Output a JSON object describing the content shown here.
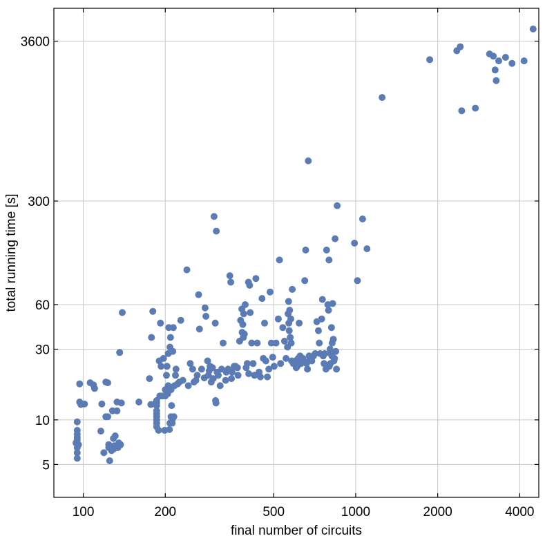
{
  "chart_data": {
    "type": "scatter",
    "xlabel": "final number of circuits",
    "ylabel": "total running time [s]",
    "xscale": "log",
    "yscale": "log",
    "xlim": [
      78,
      4700
    ],
    "ylim": [
      3,
      6000
    ],
    "grid": true,
    "xticks": [
      100,
      200,
      500,
      1000,
      2000,
      4000
    ],
    "xtick_labels": [
      "100",
      "200",
      "500",
      "1000",
      "2000",
      "4000"
    ],
    "yticks": [
      5,
      10,
      30,
      60,
      300,
      3600
    ],
    "ytick_labels": [
      "5",
      "10",
      "30",
      "60",
      "300",
      "3600"
    ],
    "marker_color": "#5b7bb5",
    "points": [
      [
        95,
        5.5
      ],
      [
        95,
        6
      ],
      [
        95,
        6.5
      ],
      [
        95,
        7
      ],
      [
        95,
        7.3
      ],
      [
        95,
        7.6
      ],
      [
        95,
        8
      ],
      [
        95,
        8.5
      ],
      [
        95,
        9.7
      ],
      [
        94,
        7
      ],
      [
        96,
        6.8
      ],
      [
        97,
        17.5
      ],
      [
        97,
        13.2
      ],
      [
        98,
        12.7
      ],
      [
        101,
        12.8
      ],
      [
        106,
        17.8
      ],
      [
        109,
        17.2
      ],
      [
        110,
        16.3
      ],
      [
        116,
        8.4
      ],
      [
        117,
        12.8
      ],
      [
        119,
        6
      ],
      [
        121,
        10.5
      ],
      [
        121,
        18
      ],
      [
        123,
        10.5
      ],
      [
        123,
        17.8
      ],
      [
        124,
        6.5
      ],
      [
        124,
        6.8
      ],
      [
        125,
        5.3
      ],
      [
        126,
        6.5
      ],
      [
        127,
        6.2
      ],
      [
        128,
        11.5
      ],
      [
        129,
        7.5
      ],
      [
        130,
        6.4
      ],
      [
        130,
        6.7
      ],
      [
        131,
        7.8
      ],
      [
        132,
        6.6
      ],
      [
        133,
        11.5
      ],
      [
        133,
        13.2
      ],
      [
        134,
        6.5
      ],
      [
        135,
        7
      ],
      [
        136,
        28.5
      ],
      [
        137,
        6.8
      ],
      [
        138,
        13
      ],
      [
        139,
        53
      ],
      [
        160,
        13.2
      ],
      [
        175,
        19
      ],
      [
        177,
        12.7
      ],
      [
        178,
        36
      ],
      [
        180,
        54
      ],
      [
        183,
        12.8
      ],
      [
        186,
        9
      ],
      [
        186,
        9.5
      ],
      [
        186,
        10
      ],
      [
        186,
        10.5
      ],
      [
        186,
        11
      ],
      [
        186,
        11.5
      ],
      [
        186,
        12.5
      ],
      [
        186,
        13
      ],
      [
        186,
        13.5
      ],
      [
        189,
        8.5
      ],
      [
        190,
        25
      ],
      [
        191,
        14.5
      ],
      [
        192,
        45
      ],
      [
        193,
        23
      ],
      [
        195,
        14.5
      ],
      [
        197,
        26
      ],
      [
        199,
        8.5
      ],
      [
        200,
        14.5
      ],
      [
        200,
        16
      ],
      [
        202,
        20
      ],
      [
        203,
        23
      ],
      [
        204,
        15
      ],
      [
        205,
        17
      ],
      [
        205,
        28
      ],
      [
        206,
        42
      ],
      [
        207,
        8.6
      ],
      [
        208,
        9.5
      ],
      [
        208,
        31
      ],
      [
        209,
        36
      ],
      [
        210,
        10.5
      ],
      [
        210,
        16
      ],
      [
        211,
        12.5
      ],
      [
        212,
        9.5
      ],
      [
        212,
        10
      ],
      [
        213,
        29
      ],
      [
        214,
        42
      ],
      [
        215,
        10.5
      ],
      [
        216,
        17
      ],
      [
        218,
        20
      ],
      [
        219,
        22
      ],
      [
        222,
        17.5
      ],
      [
        225,
        18
      ],
      [
        228,
        47
      ],
      [
        232,
        18.5
      ],
      [
        240,
        103
      ],
      [
        243,
        17
      ],
      [
        247,
        24
      ],
      [
        252,
        22
      ],
      [
        255,
        18
      ],
      [
        259,
        18.5
      ],
      [
        262,
        20
      ],
      [
        265,
        70
      ],
      [
        267,
        41
      ],
      [
        272,
        22
      ],
      [
        278,
        19.2
      ],
      [
        280,
        57
      ],
      [
        282,
        50
      ],
      [
        286,
        25
      ],
      [
        288,
        20
      ],
      [
        290,
        21.5
      ],
      [
        292,
        23
      ],
      [
        295,
        18
      ],
      [
        298,
        22.5
      ],
      [
        300,
        19
      ],
      [
        302,
        236
      ],
      [
        305,
        45
      ],
      [
        306,
        13.5
      ],
      [
        307,
        13
      ],
      [
        308,
        188
      ],
      [
        310,
        21
      ],
      [
        313,
        20
      ],
      [
        318,
        17
      ],
      [
        322,
        22
      ],
      [
        326,
        33
      ],
      [
        333,
        18.5
      ],
      [
        335,
        21
      ],
      [
        340,
        22
      ],
      [
        345,
        94
      ],
      [
        348,
        85
      ],
      [
        350,
        19
      ],
      [
        352,
        21
      ],
      [
        358,
        23
      ],
      [
        362,
        23
      ],
      [
        368,
        22.5
      ],
      [
        370,
        20
      ],
      [
        375,
        34
      ],
      [
        378,
        47
      ],
      [
        382,
        56
      ],
      [
        383,
        39
      ],
      [
        385,
        44
      ],
      [
        387,
        36
      ],
      [
        388,
        52
      ],
      [
        390,
        38
      ],
      [
        393,
        60
      ],
      [
        396,
        22.5
      ],
      [
        400,
        24
      ],
      [
        404,
        85
      ],
      [
        405,
        20.5
      ],
      [
        408,
        81
      ],
      [
        410,
        53
      ],
      [
        415,
        33
      ],
      [
        420,
        24
      ],
      [
        425,
        20
      ],
      [
        430,
        90
      ],
      [
        435,
        33
      ],
      [
        442,
        21
      ],
      [
        447,
        19.5
      ],
      [
        453,
        66
      ],
      [
        458,
        26
      ],
      [
        463,
        45
      ],
      [
        468,
        25
      ],
      [
        474,
        19.5
      ],
      [
        480,
        22
      ],
      [
        485,
        73
      ],
      [
        490,
        33
      ],
      [
        496,
        26.5
      ],
      [
        502,
        23
      ],
      [
        510,
        33
      ],
      [
        520,
        48
      ],
      [
        525,
        120
      ],
      [
        530,
        24
      ],
      [
        540,
        42
      ],
      [
        548,
        34
      ],
      [
        555,
        26
      ],
      [
        562,
        31
      ],
      [
        565,
        52
      ],
      [
        567,
        63
      ],
      [
        568,
        45
      ],
      [
        570,
        40
      ],
      [
        572,
        55
      ],
      [
        575,
        36
      ],
      [
        578,
        48
      ],
      [
        580,
        33
      ],
      [
        582,
        25
      ],
      [
        585,
        76
      ],
      [
        590,
        24
      ],
      [
        600,
        25
      ],
      [
        605,
        22.5
      ],
      [
        610,
        23
      ],
      [
        615,
        26
      ],
      [
        620,
        45
      ],
      [
        625,
        27
      ],
      [
        630,
        24
      ],
      [
        640,
        26
      ],
      [
        645,
        25
      ],
      [
        650,
        87
      ],
      [
        655,
        140
      ],
      [
        660,
        24
      ],
      [
        665,
        22
      ],
      [
        670,
        560
      ],
      [
        675,
        27
      ],
      [
        680,
        26
      ],
      [
        690,
        25
      ],
      [
        700,
        27
      ],
      [
        710,
        28
      ],
      [
        720,
        46
      ],
      [
        730,
        40
      ],
      [
        735,
        33
      ],
      [
        740,
        28
      ],
      [
        750,
        48
      ],
      [
        755,
        65
      ],
      [
        760,
        27
      ],
      [
        765,
        24
      ],
      [
        770,
        28
      ],
      [
        778,
        22
      ],
      [
        782,
        140
      ],
      [
        790,
        60
      ],
      [
        795,
        55
      ],
      [
        798,
        120
      ],
      [
        800,
        23
      ],
      [
        805,
        30
      ],
      [
        808,
        24
      ],
      [
        810,
        28
      ],
      [
        815,
        42
      ],
      [
        818,
        27
      ],
      [
        820,
        33
      ],
      [
        823,
        61
      ],
      [
        828,
        35
      ],
      [
        832,
        25
      ],
      [
        836,
        26
      ],
      [
        840,
        167
      ],
      [
        845,
        29
      ],
      [
        850,
        22
      ],
      [
        855,
        279
      ],
      [
        990,
        156
      ],
      [
        1015,
        87
      ],
      [
        1060,
        227
      ],
      [
        1100,
        143
      ],
      [
        1250,
        1500
      ],
      [
        1870,
        2700
      ],
      [
        2350,
        3100
      ],
      [
        2420,
        3300
      ],
      [
        2450,
        1220
      ],
      [
        2750,
        1270
      ],
      [
        3100,
        2950
      ],
      [
        3200,
        2850
      ],
      [
        3250,
        2300
      ],
      [
        3280,
        1950
      ],
      [
        3350,
        2650
      ],
      [
        3550,
        2800
      ],
      [
        3750,
        2550
      ],
      [
        4150,
        2650
      ],
      [
        4480,
        4350
      ]
    ]
  }
}
